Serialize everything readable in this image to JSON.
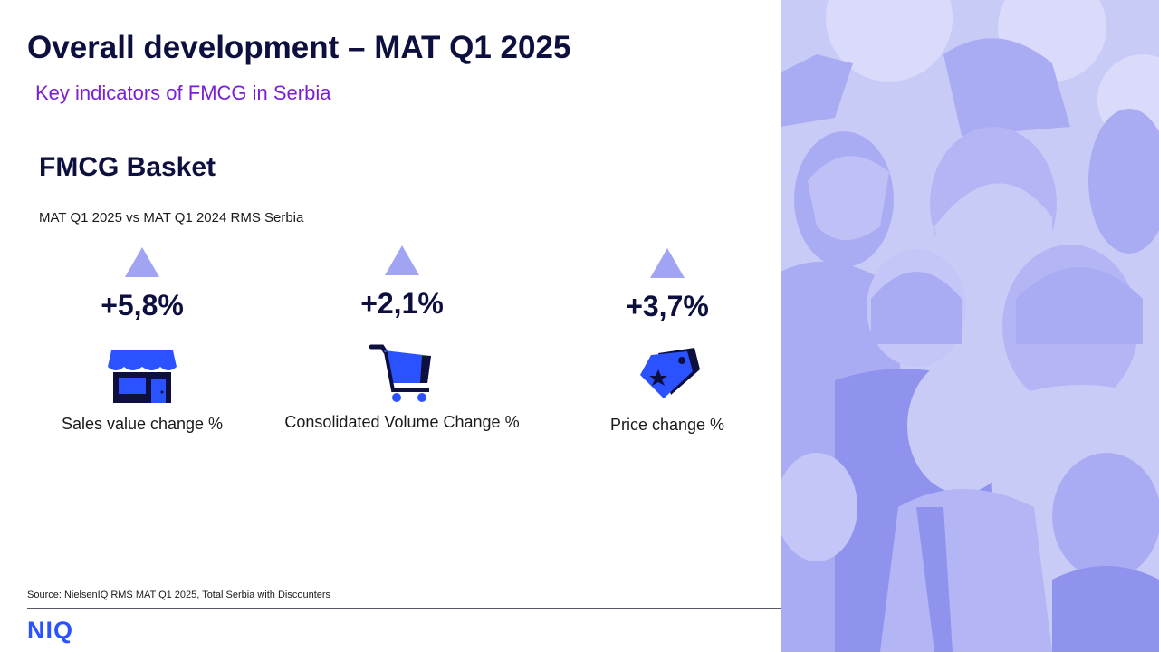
{
  "slide": {
    "title": "Overall development – MAT Q1 2025",
    "subtitle": "Key indicators of FMCG in Serbia"
  },
  "section": {
    "heading": "FMCG Basket",
    "comparison_note": "MAT Q1 2025 vs MAT Q1 2024 RMS Serbia"
  },
  "kpis": [
    {
      "value": "+5,8%",
      "label": "Sales value change %",
      "trend": "up",
      "icon": "store-icon"
    },
    {
      "value": "+2,1%",
      "label": "Consolidated Volume Change %",
      "trend": "up",
      "icon": "shopping-cart-icon"
    },
    {
      "value": "+3,7%",
      "label": "Price change %",
      "trend": "up",
      "icon": "price-tag-icon"
    }
  ],
  "footer": {
    "source": "Source: NielsenIQ RMS MAT Q1 2025, Total Serbia with Discounters",
    "logo_text": "NIQ"
  },
  "colors": {
    "title": "#0d0f3f",
    "subtitle": "#7a1fd6",
    "arrow": "#a0a4f2",
    "icon_primary": "#2b52ff",
    "icon_dark": "#0d0f3f",
    "logo": "#2b52ff",
    "illustration_bg": "#c9cbf7"
  },
  "illustration": {
    "subject": "crowd-of-people-silhouettes"
  }
}
